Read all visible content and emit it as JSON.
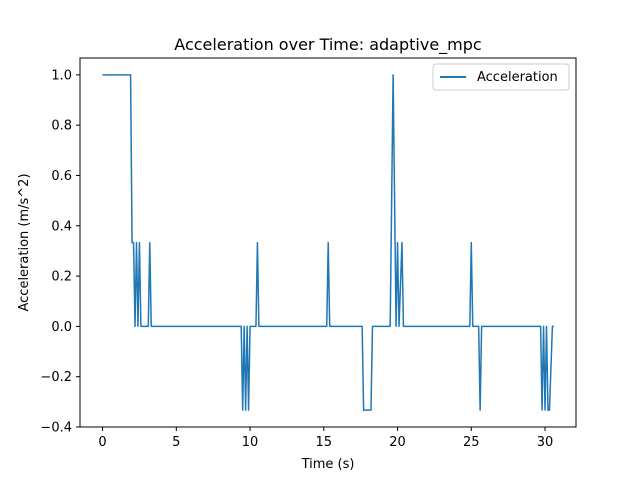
{
  "chart_data": {
    "type": "line",
    "title": "Acceleration over Time: adaptive_mpc",
    "xlabel": "Time (s)",
    "ylabel": "Acceleration (m/s^2)",
    "xlim": [
      -1.53,
      32.1
    ],
    "ylim": [
      -0.4,
      1.067
    ],
    "xticks": [
      0,
      5,
      10,
      15,
      20,
      25,
      30
    ],
    "yticks": [
      -0.4,
      -0.2,
      0.0,
      0.2,
      0.4,
      0.6,
      0.8,
      1.0
    ],
    "xtick_labels": [
      "0",
      "5",
      "10",
      "15",
      "20",
      "25",
      "30"
    ],
    "ytick_labels": [
      "−0.4",
      "−0.2",
      "0.0",
      "0.2",
      "0.4",
      "0.6",
      "0.8",
      "1.0"
    ],
    "grid": false,
    "legend_position": "top-right",
    "color": "#1f77b4",
    "series": [
      {
        "name": "Acceleration",
        "x": [
          0,
          1.9,
          2.0,
          2.1,
          2.2,
          2.3,
          2.4,
          2.5,
          2.6,
          2.7,
          3.1,
          3.2,
          3.3,
          9.4,
          9.5,
          9.6,
          9.7,
          9.8,
          9.9,
          10.0,
          10.4,
          10.5,
          10.6,
          15.2,
          15.3,
          15.4,
          17.6,
          17.7,
          17.8,
          18.2,
          18.3,
          19.5,
          19.7,
          19.9,
          20.0,
          20.1,
          20.3,
          20.4,
          20.5,
          24.9,
          25.0,
          25.1,
          25.5,
          25.6,
          25.7,
          29.7,
          29.8,
          29.9,
          30.0,
          30.1,
          30.2,
          30.3,
          30.5,
          30.6
        ],
        "y": [
          1.0,
          1.0,
          0.333,
          0.333,
          0.0,
          0.333,
          0.0,
          0.333,
          0.0,
          0.0,
          0.0,
          0.333,
          0.0,
          0.0,
          -0.333,
          0.0,
          -0.333,
          0.0,
          -0.333,
          0.0,
          0.0,
          0.333,
          0.0,
          0.0,
          0.333,
          0.0,
          0.0,
          -0.333,
          -0.333,
          -0.333,
          0.0,
          0.0,
          1.0,
          0.0,
          0.333,
          0.0,
          0.333,
          0.0,
          0.0,
          0.0,
          0.333,
          0.0,
          0.0,
          -0.333,
          0.0,
          0.0,
          -0.333,
          0.0,
          -0.333,
          0.0,
          -0.333,
          -0.333,
          0.0,
          0.0
        ]
      }
    ]
  }
}
